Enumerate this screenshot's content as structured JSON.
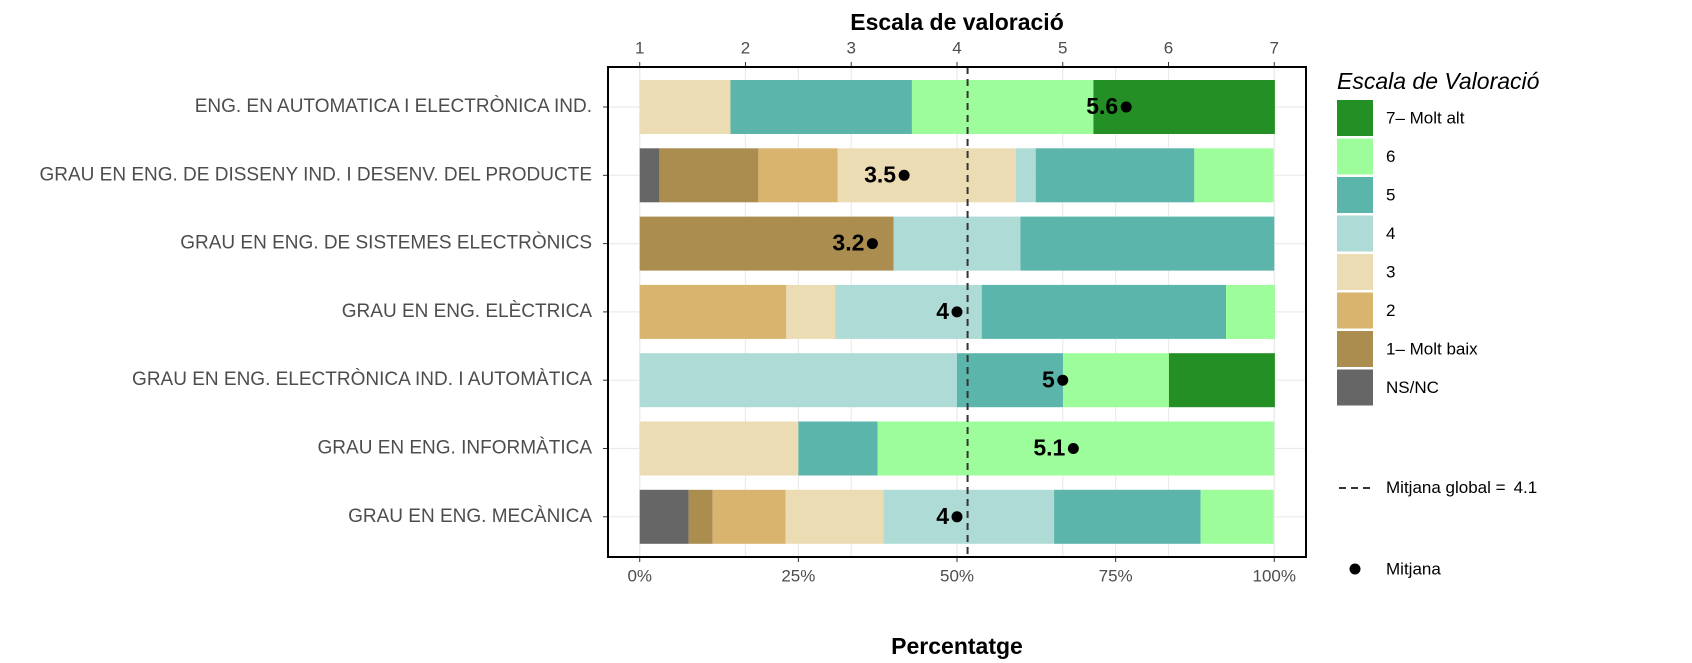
{
  "chart_data": {
    "type": "bar",
    "orientation": "horizontal",
    "stacked": true,
    "top_axis_label": "Escala de valoració",
    "x_label": "Percentatge",
    "legend_title": "Escala de Valoració",
    "categories": [
      "ENG. EN AUTOMATICA I ELECTRÒNICA IND.",
      "GRAU EN ENG. DE DISSENY IND. I DESENV. DEL PRODUCTE",
      "GRAU EN ENG. DE SISTEMES ELECTRÒNICS",
      "GRAU EN ENG. ELÈCTRICA",
      "GRAU EN ENG. ELECTRÒNICA IND. I AUTOMÀTICA",
      "GRAU EN ENG. INFORMÀTICA",
      "GRAU EN ENG. MECÀNICA"
    ],
    "series": [
      {
        "name": "NS/NC",
        "color": "#666666",
        "values": [
          0,
          3.1,
          0,
          0,
          0,
          0,
          7.7
        ]
      },
      {
        "name": "1– Molt baix",
        "color": "#aa8d4f",
        "values": [
          0,
          15.6,
          40,
          0,
          0,
          0,
          3.8
        ]
      },
      {
        "name": "2",
        "color": "#d8b46f",
        "values": [
          0,
          12.5,
          0,
          23.1,
          0,
          0,
          11.5
        ]
      },
      {
        "name": "3",
        "color": "#ecdcb4",
        "values": [
          14.3,
          28.1,
          0,
          7.7,
          0,
          25,
          15.4
        ]
      },
      {
        "name": "4",
        "color": "#aedbd6",
        "values": [
          0,
          3.1,
          20,
          23.1,
          50,
          0,
          26.9
        ]
      },
      {
        "name": "5",
        "color": "#5bb5ab",
        "values": [
          28.6,
          25,
          40,
          38.5,
          16.7,
          12.5,
          23.1
        ]
      },
      {
        "name": "6",
        "color": "#9dfd9a",
        "values": [
          28.6,
          12.5,
          0,
          7.7,
          16.7,
          62.5,
          11.5
        ]
      },
      {
        "name": "7– Molt alt",
        "color": "#248f24",
        "values": [
          28.6,
          0,
          0,
          0,
          16.7,
          0,
          0
        ]
      }
    ],
    "means": [
      5.6,
      3.5,
      3.2,
      4,
      5,
      5.1,
      4
    ],
    "mean_legend": "Mitjana",
    "reference_line": {
      "label": "Mitjana global =",
      "value": 4.1
    },
    "xlim": [
      -5,
      105
    ],
    "xticks": [
      {
        "value": 0,
        "label": "0%"
      },
      {
        "value": 25,
        "label": "25%"
      },
      {
        "value": 50,
        "label": "50%"
      },
      {
        "value": 75,
        "label": "75%"
      },
      {
        "value": 100,
        "label": "100%"
      }
    ],
    "x2lim": [
      0.7,
      7.3
    ],
    "x2ticks": [
      1,
      2,
      3,
      4,
      5,
      6,
      7
    ],
    "grid": true
  }
}
